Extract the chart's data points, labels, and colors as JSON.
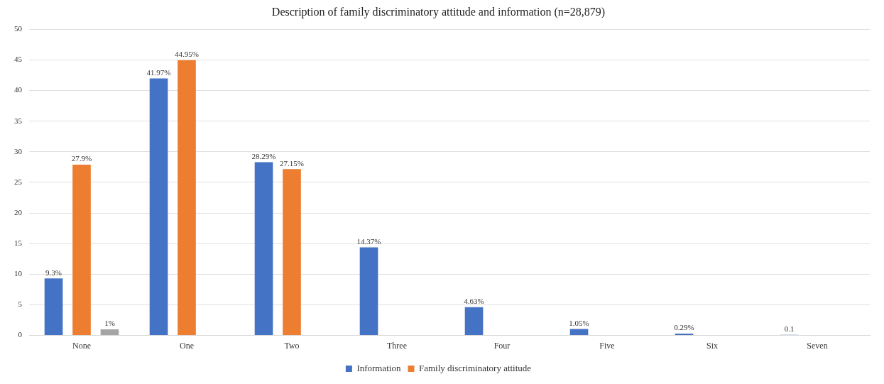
{
  "chart_data": {
    "type": "bar",
    "title": "Description of family discriminatory attitude and information (n=28,879)",
    "categories": [
      "None",
      "One",
      "Two",
      "Three",
      "Four",
      "Five",
      "Six",
      "Seven"
    ],
    "series": [
      {
        "name": "Information",
        "color": "#4472c4",
        "values": [
          9.3,
          41.97,
          28.29,
          14.37,
          4.63,
          1.05,
          0.29,
          0.1
        ],
        "value_labels": [
          "9.3%",
          "41.97%",
          "28.29%",
          "14.37%",
          "4.63%",
          "1.05%",
          "0.29%",
          "0.1"
        ]
      },
      {
        "name": "Family discriminatory attitude",
        "color": "#ed7d31",
        "values": [
          27.9,
          44.95,
          27.15,
          null,
          null,
          null,
          null,
          null
        ],
        "value_labels": [
          "27.9%",
          "44.95%",
          "27.15%",
          null,
          null,
          null,
          null,
          null
        ]
      },
      {
        "color": "#a5a5a5",
        "values": [
          1,
          null,
          null,
          null,
          null,
          null,
          null,
          null
        ],
        "value_labels": [
          "1%",
          null,
          null,
          null,
          null,
          null,
          null,
          null
        ]
      }
    ],
    "ylim": [
      0,
      50
    ],
    "yticks": [
      0,
      5,
      10,
      15,
      20,
      25,
      30,
      35,
      40,
      45,
      50
    ],
    "grid": "y",
    "legend": "bottom"
  }
}
